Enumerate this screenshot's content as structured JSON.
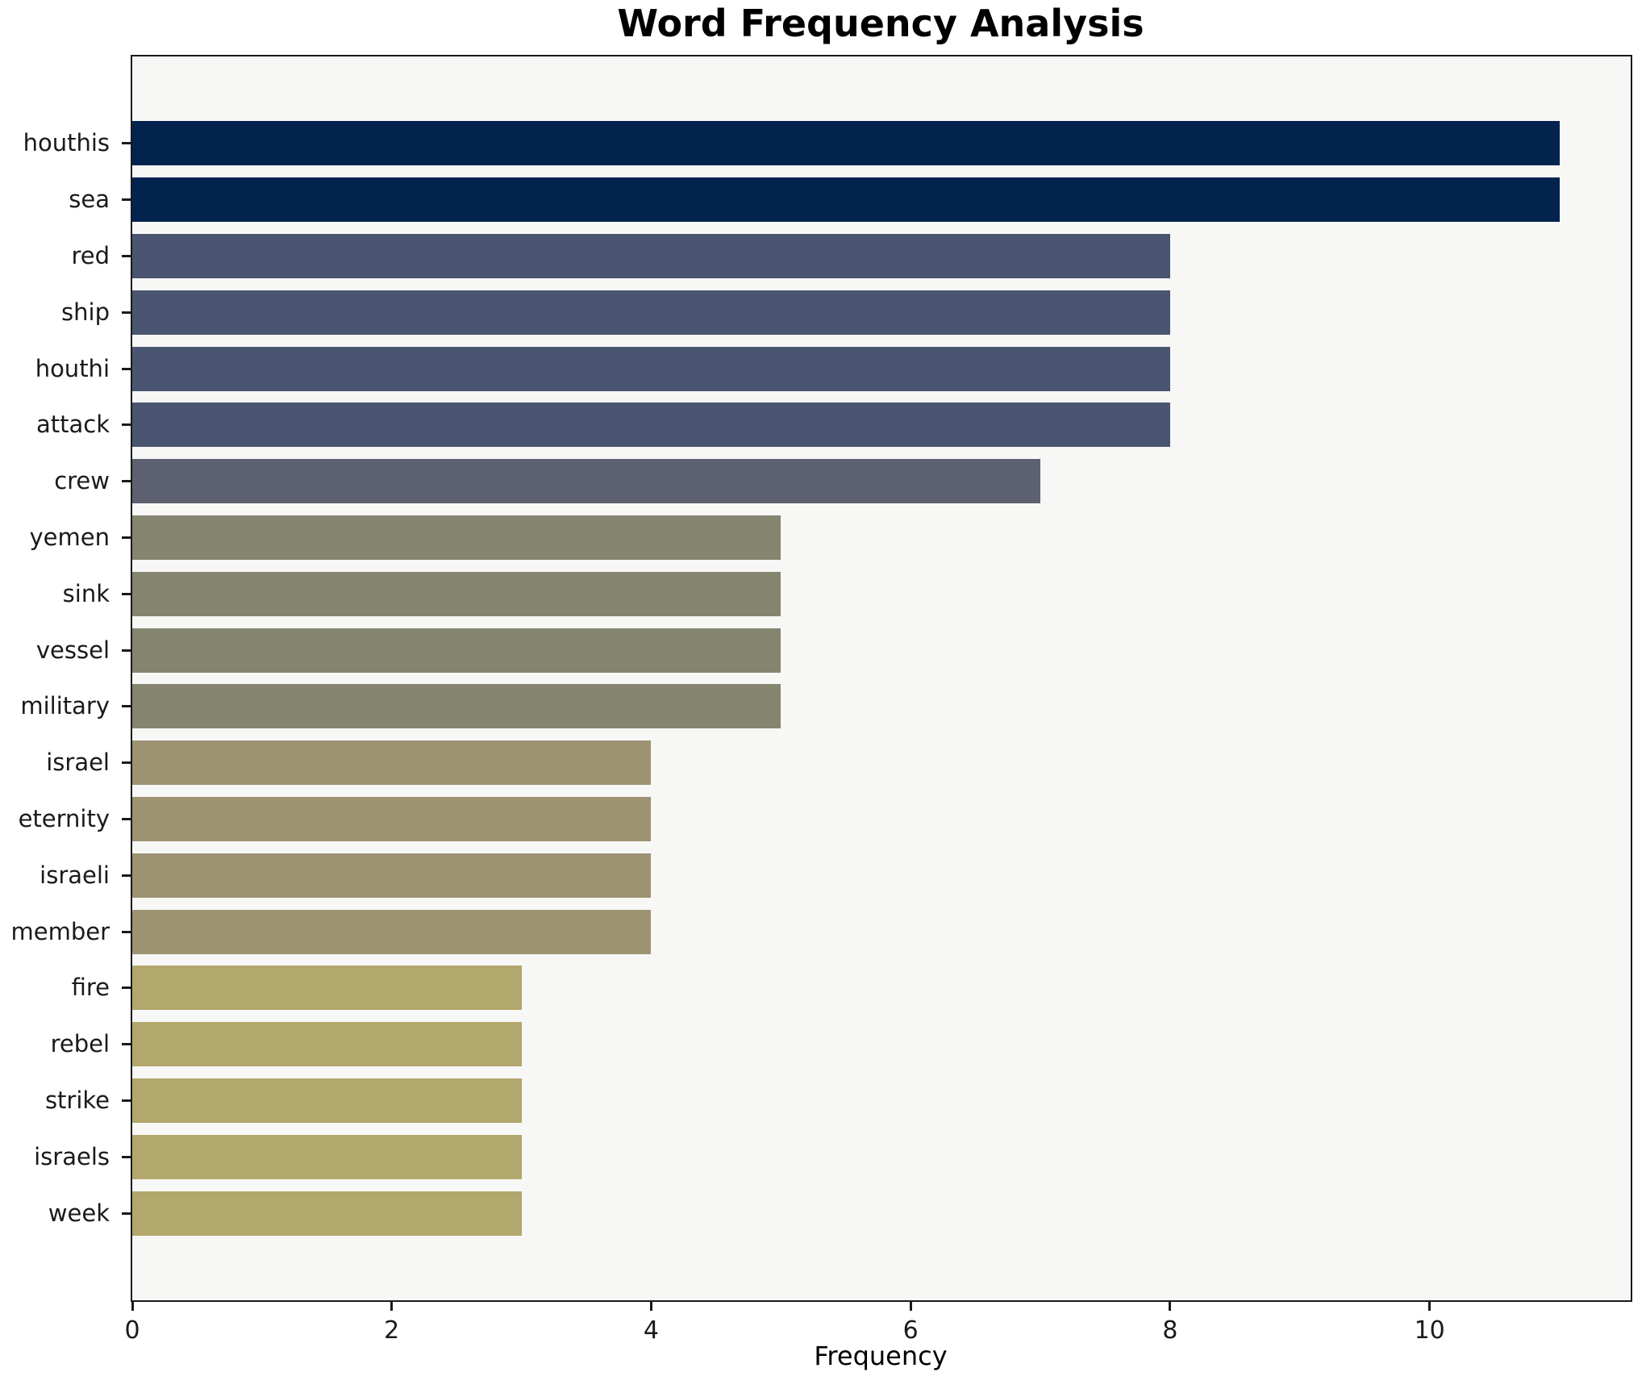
{
  "chart_data": {
    "type": "bar",
    "orientation": "horizontal",
    "title": "Word Frequency Analysis",
    "xlabel": "Frequency",
    "ylabel": "",
    "categories": [
      "houthis",
      "sea",
      "red",
      "ship",
      "houthi",
      "attack",
      "crew",
      "yemen",
      "sink",
      "vessel",
      "military",
      "israel",
      "eternity",
      "israeli",
      "member",
      "fire",
      "rebel",
      "strike",
      "israels",
      "week"
    ],
    "values": [
      11,
      11,
      8,
      8,
      8,
      8,
      7,
      5,
      5,
      5,
      5,
      4,
      4,
      4,
      4,
      3,
      3,
      3,
      3,
      3
    ],
    "bar_colors": [
      "#02234e",
      "#02234e",
      "#4a5571",
      "#4a5571",
      "#4a5571",
      "#4a5571",
      "#5d6070",
      "#85846f",
      "#85846f",
      "#85846f",
      "#85846f",
      "#9d9372",
      "#9d9372",
      "#9d9372",
      "#9d9372",
      "#b2a76c",
      "#b2a76c",
      "#b2a76c",
      "#b2a76c",
      "#b2a76c"
    ],
    "xlim": [
      0,
      11.55
    ],
    "xticks": [
      0,
      2,
      4,
      6,
      8,
      10
    ],
    "grid": false,
    "legend": null,
    "colors": {
      "plot_background": "#f7f7f6",
      "figure_background": "#ffffff",
      "spine": "#1a1a1a",
      "text": "#1a1a1a"
    }
  }
}
